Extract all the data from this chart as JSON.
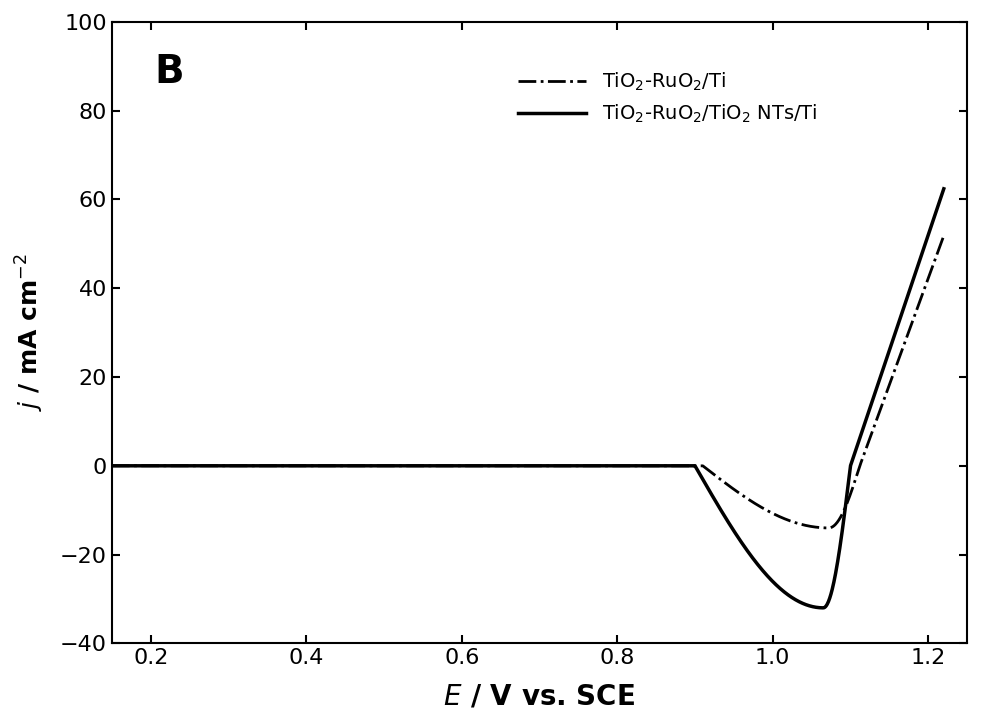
{
  "title_label": "B",
  "xlabel": "E / V vs. SCE",
  "ylabel": "j / mA cm⁻²",
  "xlim": [
    0.15,
    1.25
  ],
  "ylim": [
    -40,
    100
  ],
  "xticks": [
    0.2,
    0.4,
    0.6,
    0.8,
    1.0,
    1.2
  ],
  "yticks": [
    -40,
    -20,
    0,
    20,
    40,
    60,
    80,
    100
  ],
  "legend1_label": "TiO₂-RuO₂/Ti",
  "legend2_label": "TiO₂-RuO₂/TiO₂ NTs/Ti",
  "bg_color": "#ffffff",
  "line_color": "#000000"
}
